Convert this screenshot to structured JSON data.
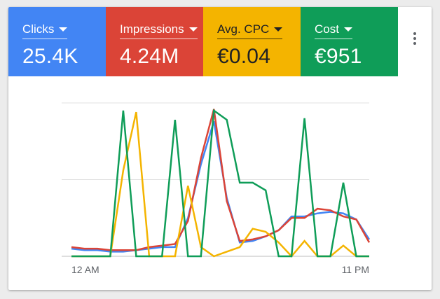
{
  "metrics": [
    {
      "label": "Clicks",
      "value": "25.4K",
      "color": "#4285f4",
      "text": "light-text"
    },
    {
      "label": "Impressions",
      "value": "4.24M",
      "color": "#db4437",
      "text": "light-text"
    },
    {
      "label": "Avg. CPC",
      "value": "€0.04",
      "color": "#f4b400",
      "text": "dark-text"
    },
    {
      "label": "Cost",
      "value": "€951",
      "color": "#0f9d58",
      "text": "light-text"
    }
  ],
  "menu": {
    "icon": "more-vert-icon"
  },
  "chart_data": {
    "type": "line",
    "x": [
      0,
      1,
      2,
      3,
      4,
      5,
      6,
      7,
      8,
      9,
      10,
      11,
      12,
      13,
      14,
      15,
      16,
      17,
      18,
      19,
      20,
      21,
      22,
      23
    ],
    "xticks": [
      "12 AM",
      "11 PM"
    ],
    "ylim": [
      0,
      100
    ],
    "grid": true,
    "series": [
      {
        "key": "clicks",
        "color": "#4285f4",
        "values": [
          5,
          4,
          4,
          3,
          3,
          4,
          5,
          6,
          6,
          25,
          60,
          88,
          38,
          9,
          10,
          13,
          17,
          26,
          26,
          28,
          29,
          28,
          24,
          11
        ]
      },
      {
        "key": "impressions",
        "color": "#db4437",
        "values": [
          6,
          5,
          5,
          4,
          4,
          4,
          6,
          7,
          8,
          23,
          64,
          96,
          36,
          10,
          11,
          13,
          17,
          25,
          25,
          31,
          30,
          26,
          24,
          9
        ]
      },
      {
        "key": "avg_cpc",
        "color": "#f4b400",
        "values": [
          0,
          0,
          0,
          0,
          56,
          94,
          0,
          0,
          0,
          46,
          6,
          0,
          3,
          6,
          18,
          16,
          9,
          0,
          10,
          0,
          0,
          7,
          0,
          0
        ]
      },
      {
        "key": "cost",
        "color": "#0f9d58",
        "values": [
          0,
          0,
          0,
          0,
          95,
          0,
          0,
          0,
          89,
          0,
          0,
          95,
          89,
          48,
          48,
          43,
          0,
          0,
          90,
          0,
          0,
          48,
          0,
          0
        ]
      }
    ]
  }
}
